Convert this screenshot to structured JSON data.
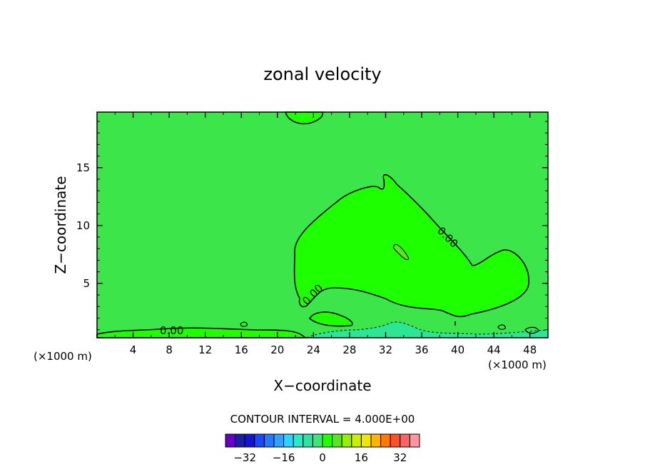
{
  "chart_data": {
    "type": "contour",
    "title": "zonal velocity",
    "xlabel": "X−coordinate",
    "ylabel": "Z−coordinate",
    "x_unit_left": "(×1000 m)",
    "x_unit_right": "(×1000 m)",
    "xlim": [
      0,
      50
    ],
    "ylim": [
      0.3,
      19.8
    ],
    "x_ticks": [
      4,
      8,
      12,
      16,
      20,
      24,
      28,
      32,
      36,
      40,
      44,
      48
    ],
    "y_ticks": [
      5,
      10,
      15
    ],
    "contour_interval_text": "CONTOUR INTERVAL = 4.000E+00",
    "contour_labels": [
      "0.00",
      "0.00",
      "0.00"
    ],
    "field": {
      "background_level": "0 to 4",
      "regions": [
        {
          "level": "0 to 4",
          "description": "main field"
        },
        {
          "level": "4 to 8",
          "description": "bulge x≈22–48, z≈2–14"
        },
        {
          "level": "4 to 8",
          "description": "bump at top near x≈22, z≈19–20"
        },
        {
          "level": "4 to 8",
          "description": "thin band near bottom x≈0–23"
        },
        {
          "level": "-4 to 0",
          "description": "patches near bottom x≈23–50"
        }
      ]
    },
    "colorbar": {
      "tick_labels": [
        "−32",
        "−16",
        "0",
        "16",
        "32"
      ],
      "tick_values": [
        -32,
        -16,
        0,
        16,
        32
      ],
      "levels": [
        -36,
        -32,
        -28,
        -24,
        -20,
        -16,
        -12,
        -8,
        -4,
        0,
        4,
        8,
        12,
        16,
        20,
        24,
        28,
        32,
        36
      ],
      "colors": [
        "#6a00c8",
        "#1e1ea0",
        "#1414d2",
        "#1c46ff",
        "#2878ff",
        "#32a0ff",
        "#32d2ff",
        "#2ee6c8",
        "#2ce6a0",
        "#3ce678",
        "#1eff00",
        "#5ae61e",
        "#96f000",
        "#c8f000",
        "#f0e600",
        "#ffb400",
        "#ff7800",
        "#ff5028",
        "#ff6464",
        "#ff96a0"
      ]
    },
    "colors": {
      "field_0_4": "#3ce64a",
      "field_4_8": "#1eff00",
      "field_neg": "#2ce694"
    }
  }
}
